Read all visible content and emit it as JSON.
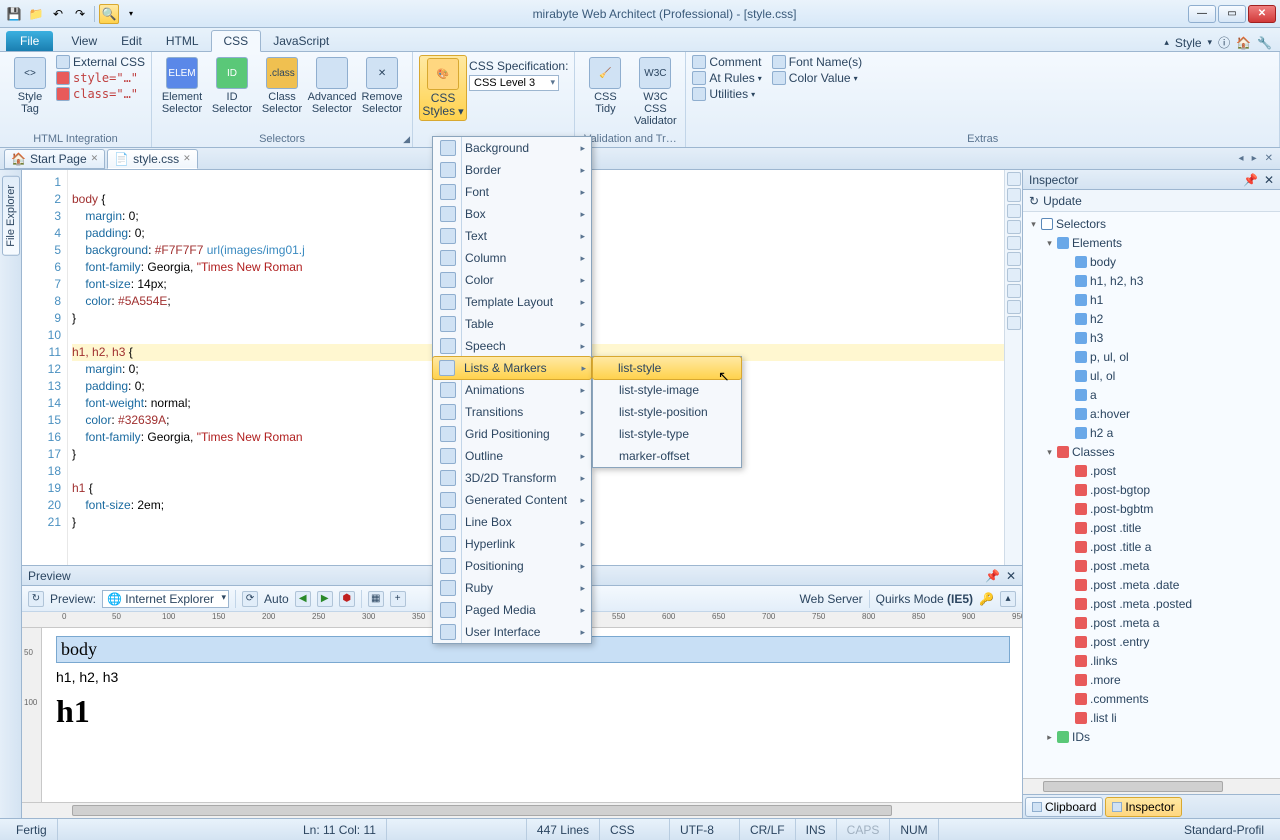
{
  "window": {
    "title": "mirabyte Web Architect (Professional) - [style.css]"
  },
  "menutabs": {
    "file": "File",
    "view": "View",
    "edit": "Edit",
    "html": "HTML",
    "css": "CSS",
    "js": "JavaScript",
    "style": "Style"
  },
  "ribbon": {
    "g1": {
      "label": "HTML Integration",
      "styletag": "Style\nTag",
      "ext": "External CSS",
      "inline": "style=\"…\"",
      "cls": "class=\"…\""
    },
    "g2": {
      "label": "Selectors",
      "el": "Element\nSelector",
      "id": "ID\nSelector",
      "cl": "Class\nSelector",
      "adv": "Advanced\nSelector",
      "rem": "Remove\nSelector"
    },
    "g3": {
      "label": "",
      "csss": "CSS\nStyles",
      "spec": "CSS Specification:",
      "level": "CSS Level 3"
    },
    "g4": {
      "label": "Validation and Tr…",
      "tidy": "CSS\nTidy",
      "w3c": "W3C CSS\nValidator"
    },
    "g5": {
      "label": "Extras",
      "comment": "Comment",
      "atrules": "At Rules",
      "util": "Utilities",
      "fontn": "Font Name(s)",
      "colorv": "Color Value"
    }
  },
  "doctabs": {
    "start": "Start Page",
    "file": "style.css"
  },
  "code": {
    "lines": [
      {
        "n": 1,
        "raw": ""
      },
      {
        "n": 2,
        "sel": "body",
        "br": " {"
      },
      {
        "n": 3,
        "prop": "    margin",
        "val": ": 0;"
      },
      {
        "n": 4,
        "prop": "    padding",
        "val": ": 0;"
      },
      {
        "n": 5,
        "prop": "    background",
        "val2a": ": ",
        "col": "#F7F7F7",
        "url": " url(images/img01.j"
      },
      {
        "n": 6,
        "prop": "    font-family",
        "val2a": ": Georgia, ",
        "str": "\"Times New Roman"
      },
      {
        "n": 7,
        "prop": "    font-size",
        "val": ": 14px;"
      },
      {
        "n": 8,
        "prop": "    color",
        "val2a": ": ",
        "col": "#5A554E",
        "val2b": ";"
      },
      {
        "n": 9,
        "raw": "}"
      },
      {
        "n": 10,
        "raw": ""
      },
      {
        "n": 11,
        "hl": true,
        "sel": "h1, h2, h3",
        "br": " {"
      },
      {
        "n": 12,
        "prop": "    margin",
        "val": ": 0;"
      },
      {
        "n": 13,
        "prop": "    padding",
        "val": ": 0;"
      },
      {
        "n": 14,
        "prop": "    font-weight",
        "val": ": normal;"
      },
      {
        "n": 15,
        "prop": "    color",
        "val2a": ": ",
        "col": "#32639A",
        "val2b": ";"
      },
      {
        "n": 16,
        "prop": "    font-family",
        "val2a": ": Georgia, ",
        "str": "\"Times New Roman"
      },
      {
        "n": 17,
        "raw": "}"
      },
      {
        "n": 18,
        "raw": ""
      },
      {
        "n": 19,
        "sel": "h1",
        "br": " {"
      },
      {
        "n": 20,
        "prop": "    font-size",
        "val": ": 2em;"
      },
      {
        "n": 21,
        "raw": "}"
      }
    ]
  },
  "dropdown": {
    "items": [
      "Background",
      "Border",
      "Font",
      "Box",
      "Text",
      "Column",
      "Color",
      "Template Layout",
      "Table",
      "Speech",
      "Lists & Markers",
      "Animations",
      "Transitions",
      "Grid Positioning",
      "Outline",
      "3D/2D Transform",
      "Generated Content",
      "Line Box",
      "Hyperlink",
      "Positioning",
      "Ruby",
      "Paged Media",
      "User Interface"
    ]
  },
  "submenu": {
    "items": [
      "list-style",
      "list-style-image",
      "list-style-position",
      "list-style-type",
      "marker-offset"
    ]
  },
  "inspector": {
    "title": "Inspector",
    "update": "Update",
    "root": "Selectors",
    "elements_label": "Elements",
    "elements": [
      "body",
      "h1, h2, h3",
      "h1",
      "h2",
      "h3",
      "p, ul, ol",
      "ul, ol",
      "a",
      "a:hover",
      "h2 a"
    ],
    "classes_label": "Classes",
    "classes": [
      ".post",
      ".post-bgtop",
      ".post-bgbtm",
      ".post .title",
      ".post .title a",
      ".post .meta",
      ".post .meta .date",
      ".post .meta .posted",
      ".post .meta a",
      ".post .entry",
      ".links",
      ".more",
      ".comments",
      ".list li"
    ],
    "ids_label": "IDs",
    "tabs": {
      "clipboard": "Clipboard",
      "inspector": "Inspector"
    }
  },
  "preview": {
    "title": "Preview",
    "label": "Preview:",
    "browser": "Internet Explorer",
    "auto": "Auto",
    "webserver": "Web Server",
    "quirks": "Quirks Mode (IE5)",
    "body": "body",
    "h123": "h1, h2, h3",
    "h1": "h1"
  },
  "status": {
    "ready": "Fertig",
    "pos": "Ln: 11  Col: 11",
    "lines": "447 Lines",
    "lang": "CSS",
    "enc": "UTF-8",
    "eol": "CR/LF",
    "ins": "INS",
    "caps": "CAPS",
    "num": "NUM",
    "profile": "Standard-Profil"
  },
  "leftrail": {
    "label": "File Explorer"
  }
}
